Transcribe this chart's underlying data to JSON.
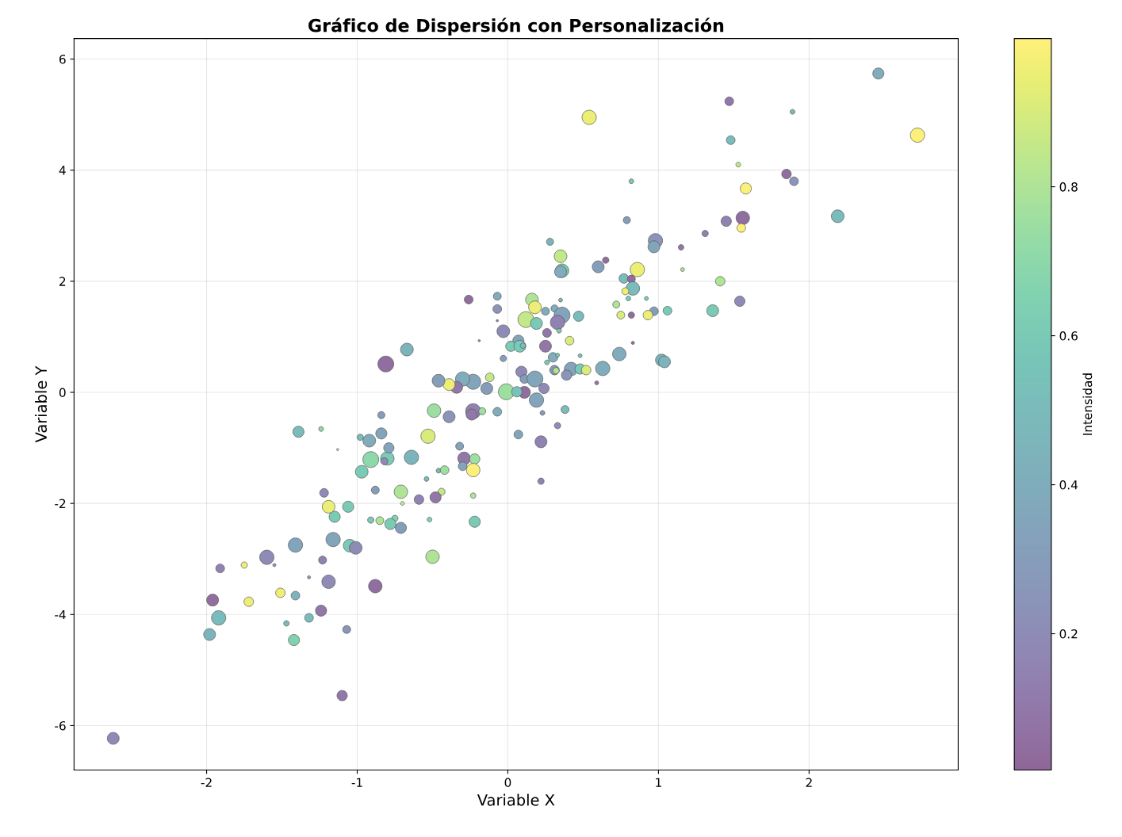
{
  "chart_data": {
    "type": "bubble",
    "title": "Gráfico de Dispersión con Personalización",
    "xlabel": "Variable X",
    "ylabel": "Variable Y",
    "clabel": "Intensidad",
    "xlim": [
      -2.88,
      2.99
    ],
    "ylim": [
      -6.8,
      6.37
    ],
    "xticks": [
      -2,
      -1,
      0,
      1,
      2
    ],
    "yticks": [
      -6,
      -4,
      -2,
      0,
      2,
      4,
      6
    ],
    "clim": [
      0.017,
      0.999
    ],
    "cticks": [
      0.2,
      0.4,
      0.6,
      0.8
    ],
    "grid": true,
    "marker": "circle",
    "x": [
      2.46,
      1.47,
      1.89,
      0.54,
      2.72,
      1.48,
      1.53,
      1.85,
      1.9,
      0.82,
      1.58,
      2.19,
      0.79,
      1.45,
      1.56,
      1.55,
      1.31,
      0.98,
      0.97,
      1.15,
      0.28,
      0.35,
      0.65,
      1.16,
      0.36,
      0.35,
      0.6,
      0.86,
      0.77,
      0.82,
      1.41,
      0.83,
      0.78,
      0.8,
      0.92,
      1.36,
      1.54,
      0.72,
      1.06,
      0.97,
      0.93,
      0.75,
      0.82,
      0.83,
      0.47,
      -0.26,
      -0.07,
      -0.07,
      -0.07,
      0.16,
      0.18,
      0.12,
      0.19,
      0.25,
      0.31,
      0.35,
      0.36,
      0.33,
      0.34,
      -0.03,
      0.07,
      0.02,
      0.08,
      0.1,
      0.26,
      0.25,
      0.41,
      0.3,
      0.33,
      0.48,
      0.26,
      -0.19,
      -0.03,
      -0.67,
      -0.81,
      0.09,
      0.11,
      0.31,
      0.32,
      0.18,
      0.42,
      0.39,
      0.48,
      0.52,
      0.63,
      0.74,
      1.02,
      1.04,
      0.59,
      0.24,
      0.11,
      -0.01,
      0.06,
      0.19,
      0.23,
      0.38,
      0.33,
      0.07,
      0.22,
      0.22,
      -0.07,
      -0.14,
      -0.12,
      -0.23,
      -0.3,
      -0.34,
      -0.39,
      -0.46,
      -0.23,
      -0.24,
      -0.17,
      -0.39,
      -0.49,
      -0.53,
      -0.32,
      -0.29,
      -0.3,
      -0.22,
      -0.23,
      -0.23,
      -0.22,
      -0.46,
      -0.42,
      -0.44,
      -0.48,
      -0.59,
      -0.54,
      -0.52,
      -0.5,
      -0.64,
      -0.71,
      -0.7,
      -0.71,
      -0.75,
      -0.8,
      -0.84,
      -0.84,
      -0.79,
      -0.82,
      -0.91,
      -0.92,
      -0.88,
      -0.91,
      -0.85,
      -0.78,
      -0.97,
      -0.98,
      -1.06,
      -1.05,
      -1.01,
      -1.16,
      -1.15,
      -1.19,
      -1.13,
      -1.22,
      -1.24,
      -1.39,
      -1.41,
      -1.23,
      -1.19,
      -1.07,
      -1.1,
      -0.88,
      -1.24,
      -1.41,
      -1.42,
      -1.32,
      -1.32,
      -1.47,
      -1.51,
      -1.6,
      -1.55,
      -1.75,
      -1.72,
      -1.91,
      -1.96,
      -1.92,
      -1.98,
      -2.62
    ],
    "values": [
      5.74,
      5.24,
      5.05,
      4.95,
      4.63,
      4.54,
      4.1,
      3.93,
      3.8,
      3.8,
      3.67,
      3.17,
      3.1,
      3.08,
      3.14,
      2.96,
      2.86,
      2.73,
      2.62,
      2.61,
      2.71,
      2.45,
      2.38,
      2.21,
      2.19,
      2.17,
      2.26,
      2.21,
      2.05,
      2.04,
      2.0,
      1.87,
      1.82,
      1.69,
      1.69,
      1.47,
      1.64,
      1.58,
      1.47,
      1.46,
      1.39,
      1.39,
      1.39,
      0.89,
      1.37,
      1.67,
      1.73,
      1.5,
      1.29,
      1.67,
      1.53,
      1.31,
      1.24,
      1.46,
      1.51,
      1.66,
      1.39,
      1.26,
      1.11,
      1.1,
      0.93,
      0.83,
      0.83,
      0.84,
      1.07,
      0.83,
      0.93,
      0.63,
      0.67,
      0.66,
      0.54,
      0.93,
      0.61,
      0.77,
      0.51,
      0.37,
      0.24,
      0.4,
      0.39,
      0.24,
      0.42,
      0.31,
      0.42,
      0.4,
      0.43,
      0.69,
      0.58,
      0.55,
      0.17,
      0.07,
      0.0,
      0.01,
      0.01,
      -0.14,
      -0.37,
      -0.31,
      -0.6,
      -0.76,
      -0.89,
      -1.6,
      -0.35,
      0.07,
      0.27,
      0.19,
      0.24,
      0.09,
      0.14,
      0.21,
      -0.34,
      -0.4,
      -0.34,
      -0.44,
      -0.33,
      -0.79,
      -0.97,
      -1.19,
      -1.33,
      -1.2,
      -1.4,
      -1.86,
      -2.33,
      -1.41,
      -1.4,
      -1.79,
      -1.89,
      -1.93,
      -1.56,
      -2.29,
      -2.96,
      -1.17,
      -1.79,
      -2.0,
      -2.44,
      -2.27,
      -1.19,
      -0.41,
      -0.74,
      -1.0,
      -1.24,
      -1.21,
      -0.87,
      -1.76,
      -2.3,
      -2.31,
      -2.37,
      -1.43,
      -0.81,
      -2.06,
      -2.76,
      -2.8,
      -2.65,
      -2.24,
      -2.06,
      -1.03,
      -1.81,
      -0.66,
      -0.71,
      -2.75,
      -3.02,
      -3.41,
      -4.27,
      -5.46,
      -3.49,
      -3.93,
      -3.66,
      -4.46,
      -4.06,
      -3.33,
      -4.16,
      -3.61,
      -2.97,
      -3.11,
      -3.11,
      -3.77,
      -3.17,
      -3.74,
      -4.06,
      -4.36,
      -6.23
    ],
    "sizes": [
      0.49,
      0.3,
      0.09,
      0.81,
      0.81,
      0.3,
      0.09,
      0.36,
      0.3,
      0.09,
      0.49,
      0.64,
      0.2,
      0.42,
      0.72,
      0.3,
      0.16,
      0.81,
      0.56,
      0.12,
      0.2,
      0.64,
      0.16,
      0.06,
      0.72,
      0.56,
      0.56,
      0.81,
      0.36,
      0.25,
      0.36,
      0.72,
      0.2,
      0.09,
      0.06,
      0.56,
      0.42,
      0.2,
      0.3,
      0.3,
      0.36,
      0.25,
      0.16,
      0.04,
      0.42,
      0.3,
      0.25,
      0.3,
      0.02,
      0.64,
      0.64,
      1,
      0.56,
      0.25,
      0.2,
      0.06,
      1,
      0.81,
      0.09,
      0.64,
      0.49,
      0.42,
      0.56,
      0.12,
      0.3,
      0.56,
      0.3,
      0.36,
      0.06,
      0.06,
      0.09,
      0.02,
      0.16,
      0.64,
      1,
      0.49,
      0.3,
      0.36,
      0.16,
      1,
      0.72,
      0.42,
      0.42,
      0.36,
      0.81,
      0.72,
      0.56,
      0.56,
      0.06,
      0.42,
      0.56,
      1,
      0.42,
      0.81,
      0.09,
      0.25,
      0.16,
      0.3,
      0.56,
      0.16,
      0.3,
      0.56,
      0.3,
      0.9,
      0.81,
      0.56,
      0.56,
      0.64,
      0.9,
      0.49,
      0.2,
      0.56,
      0.72,
      0.81,
      0.25,
      0.64,
      0.3,
      0.42,
      0.72,
      0.12,
      0.49,
      0.09,
      0.3,
      0.2,
      0.49,
      0.36,
      0.09,
      0.09,
      0.72,
      0.81,
      0.72,
      0.06,
      0.49,
      0.16,
      0.72,
      0.2,
      0.49,
      0.42,
      0.2,
      1,
      0.64,
      0.25,
      0.16,
      0.25,
      0.49,
      0.64,
      0.16,
      0.49,
      0.64,
      0.64,
      0.81,
      0.49,
      0.64,
      0.02,
      0.3,
      0.09,
      0.49,
      0.81,
      0.25,
      0.72,
      0.25,
      0.42,
      0.72,
      0.49,
      0.3,
      0.49,
      0.3,
      0.04,
      0.12,
      0.36,
      0.81,
      0.04,
      0.16,
      0.36,
      0.3,
      0.56,
      0.81,
      0.56,
      0.56
    ],
    "cvalues": [
      0.4,
      0.1,
      0.5,
      0.95,
      0.99,
      0.5,
      0.85,
      0.05,
      0.25,
      0.6,
      0.99,
      0.5,
      0.3,
      0.15,
      0.05,
      0.99,
      0.15,
      0.25,
      0.35,
      0.1,
      0.45,
      0.85,
      0.05,
      0.8,
      0.6,
      0.4,
      0.3,
      0.95,
      0.5,
      0.05,
      0.8,
      0.5,
      0.95,
      0.6,
      0.6,
      0.6,
      0.2,
      0.8,
      0.6,
      0.3,
      0.95,
      0.9,
      0.05,
      0.05,
      0.5,
      0.05,
      0.4,
      0.25,
      0.1,
      0.8,
      0.95,
      0.85,
      0.6,
      0.4,
      0.4,
      0.5,
      0.35,
      0.15,
      0.6,
      0.2,
      0.35,
      0.6,
      0.6,
      0.5,
      0.1,
      0.1,
      0.9,
      0.4,
      0.6,
      0.55,
      0.6,
      0.2,
      0.3,
      0.45,
      0.05,
      0.2,
      0.3,
      0.25,
      0.8,
      0.35,
      0.35,
      0.25,
      0.6,
      0.9,
      0.4,
      0.4,
      0.45,
      0.45,
      0.1,
      0.2,
      0.05,
      0.75,
      0.55,
      0.35,
      0.3,
      0.5,
      0.2,
      0.35,
      0.15,
      0.15,
      0.4,
      0.3,
      0.85,
      0.35,
      0.4,
      0.1,
      0.95,
      0.3,
      0.15,
      0.1,
      0.75,
      0.25,
      0.75,
      0.9,
      0.35,
      0.1,
      0.35,
      0.75,
      0.99,
      0.8,
      0.6,
      0.5,
      0.75,
      0.85,
      0.1,
      0.15,
      0.5,
      0.65,
      0.8,
      0.45,
      0.8,
      0.85,
      0.3,
      0.65,
      0.6,
      0.3,
      0.35,
      0.35,
      0.2,
      0.7,
      0.4,
      0.3,
      0.6,
      0.8,
      0.6,
      0.6,
      0.5,
      0.6,
      0.6,
      0.2,
      0.35,
      0.6,
      0.95,
      0.8,
      0.2,
      0.7,
      0.5,
      0.35,
      0.15,
      0.2,
      0.25,
      0.1,
      0.05,
      0.1,
      0.45,
      0.65,
      0.5,
      0.3,
      0.5,
      0.95,
      0.2,
      0.3,
      0.95,
      0.95,
      0.15,
      0.05,
      0.5,
      0.45,
      0.2
    ]
  }
}
